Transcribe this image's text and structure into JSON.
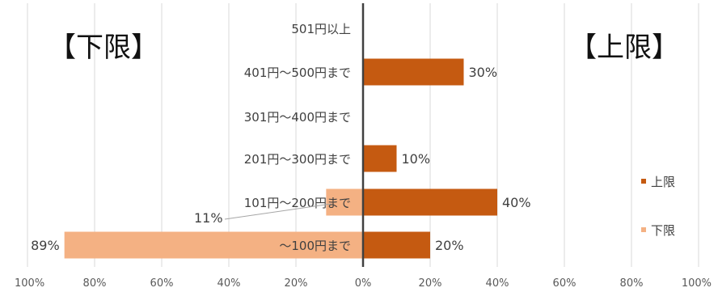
{
  "chart_data": {
    "type": "bar",
    "orientation": "horizontal",
    "layout": "diverging",
    "categories": [
      "501円以上",
      "401円～500円まで",
      "301円～400円まで",
      "201円～300円まで",
      "101円～200円まで",
      "～100円まで"
    ],
    "series": [
      {
        "name": "上限",
        "values": [
          0,
          30,
          0,
          10,
          40,
          20
        ],
        "color": "#C55A11",
        "direction": "right"
      },
      {
        "name": "下限",
        "values": [
          0,
          0,
          0,
          0,
          11,
          89
        ],
        "color": "#F4B183",
        "direction": "left"
      }
    ],
    "data_labels": {
      "上限": [
        "",
        "30%",
        "",
        "10%",
        "40%",
        "20%"
      ],
      "下限": [
        "",
        "",
        "",
        "",
        "11%",
        "89%"
      ]
    },
    "x_ticks": [
      "100%",
      "80%",
      "60%",
      "40%",
      "20%",
      "0%",
      "20%",
      "40%",
      "60%",
      "80%",
      "100%"
    ],
    "xlim": [
      -100,
      100
    ],
    "grid": true,
    "legend_position": "right",
    "panel_labels": {
      "left": "【下限】",
      "right": "【上限】"
    }
  }
}
